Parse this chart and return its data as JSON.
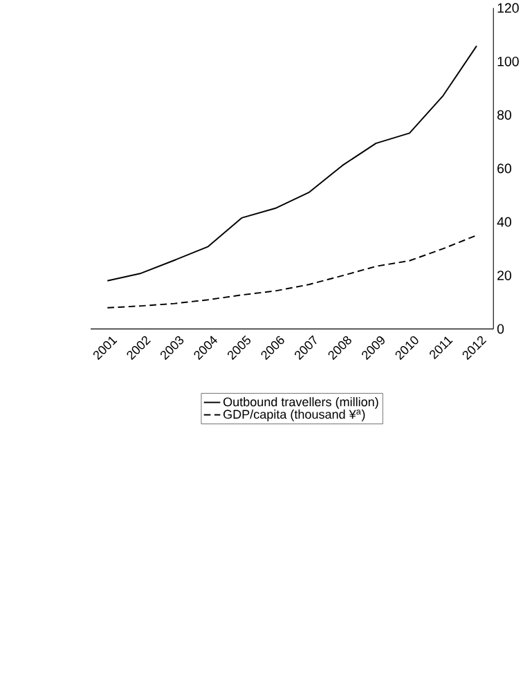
{
  "chart_data": {
    "type": "line",
    "categories": [
      "2001",
      "2002",
      "2003",
      "2004",
      "2005",
      "2006",
      "2007",
      "2008",
      "2009",
      "2010",
      "2011",
      "2012"
    ],
    "series": [
      {
        "name": "Outbound travellers (million)",
        "color": "#000000",
        "line_style": "solid",
        "values": [
          18.0,
          20.8,
          25.7,
          30.8,
          41.5,
          45.1,
          51.0,
          61.1,
          69.4,
          73.2,
          87.2,
          105.8
        ]
      },
      {
        "name": "GDP/capita (thousand ¥$^{a}$)",
        "color": "#000000",
        "line_style": "dashed",
        "values": [
          7.9,
          8.6,
          9.5,
          10.9,
          12.7,
          14.2,
          16.6,
          19.9,
          23.4,
          25.5,
          30.0,
          35.0
        ]
      }
    ],
    "ylim": [
      0,
      120
    ],
    "yticks": [
      0,
      20,
      40,
      60,
      80,
      100,
      120
    ],
    "grid": false,
    "legend": "bottom",
    "marker": "none"
  }
}
